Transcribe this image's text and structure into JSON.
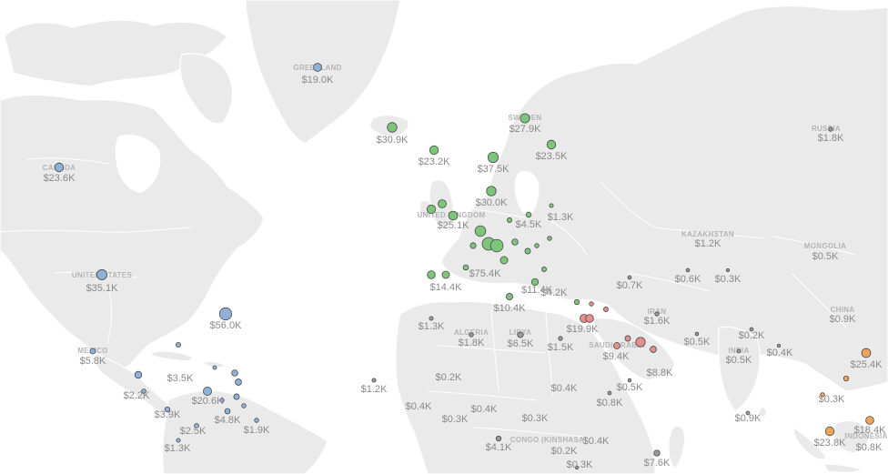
{
  "colors": {
    "americas": "#8fb1d8",
    "europe": "#7cc57a",
    "middle_east": "#e58e8e",
    "asia": "#f0a45a",
    "other": "#9a9a9a"
  },
  "country_labels": [
    "GREENLAND",
    "CANADA",
    "UNITED STATES",
    "MEXICO",
    "SWEDEN",
    "UNITED KINGDOM",
    "RUSSIA",
    "KAZAKHSTAN",
    "MONGOLIA",
    "CHINA",
    "IRAN",
    "INDIA",
    "SAUDI ARABIA",
    "ALGERIA",
    "LIBYA",
    "CONGO (KINSHASA)",
    "INDONESIA"
  ],
  "values": [
    "$19.0K",
    "$23.6K",
    "$35.1K",
    "$56.0K",
    "$5.8K",
    "$3.5K",
    "$2.2K",
    "$3.9K",
    "$20.6K",
    "$4.8K",
    "$2.5K",
    "$1.9K",
    "$1.3K",
    "$30.9K",
    "$23.2K",
    "$27.9K",
    "$37.5K",
    "$23.5K",
    "$30.0K",
    "$25.1K",
    "$4.5K",
    "$1.3K",
    "$75.4K",
    "$14.4K",
    "$11.4K",
    "$10.4K",
    "$4.2K",
    "$1.3K",
    "$1.8K",
    "$6.5K",
    "$1.5K",
    "$19.9K",
    "$9.4K",
    "$8.8K",
    "$0.7K",
    "$0.6K",
    "$0.3K",
    "$1.6K",
    "$0.5K",
    "$0.2K",
    "$0.5K",
    "$0.4K",
    "$1.2K",
    "$0.5K",
    "$0.9K",
    "$25.4K",
    "$0.3K",
    "$1.8K",
    "$1.2K",
    "$0.2K",
    "$0.4K",
    "$0.3K",
    "$0.4K",
    "$0.3K",
    "$0.4K",
    "$0.8K",
    "$0.5K",
    "$4.1K",
    "$0.2K",
    "$0.4K",
    "$0.3K",
    "$7.6K",
    "$0.9K",
    "$23.8K",
    "$18.4K",
    "$0.8K"
  ],
  "dots": [
    {
      "v": 19.0,
      "r": "americas"
    },
    {
      "v": 23.6,
      "r": "americas"
    },
    {
      "v": 35.1,
      "r": "americas"
    },
    {
      "v": 56.0,
      "r": "americas"
    },
    {
      "v": 5.8,
      "r": "americas"
    },
    {
      "v": 3.5,
      "r": "americas"
    },
    {
      "v": 12,
      "r": "americas"
    },
    {
      "v": 2.2,
      "r": "americas"
    },
    {
      "v": 3.9,
      "r": "americas"
    },
    {
      "v": 20.6,
      "r": "americas"
    },
    {
      "v": 8,
      "r": "americas"
    },
    {
      "v": 9,
      "r": "americas"
    },
    {
      "v": 6,
      "r": "americas"
    },
    {
      "v": 4.8,
      "r": "americas"
    },
    {
      "v": 2.5,
      "r": "americas"
    },
    {
      "v": 1.9,
      "r": "americas"
    },
    {
      "v": 1.3,
      "r": "americas"
    },
    {
      "v": 2,
      "r": "americas"
    },
    {
      "v": 1,
      "r": "americas"
    },
    {
      "v": 1.5,
      "r": "americas"
    },
    {
      "v": 30.9,
      "r": "europe"
    },
    {
      "v": 23.2,
      "r": "europe"
    },
    {
      "v": 27.9,
      "r": "europe"
    },
    {
      "v": 37.5,
      "r": "europe"
    },
    {
      "v": 23.5,
      "r": "europe"
    },
    {
      "v": 30.0,
      "r": "europe"
    },
    {
      "v": 25.1,
      "r": "europe"
    },
    {
      "v": 40,
      "r": "europe"
    },
    {
      "v": 75.4,
      "r": "europe"
    },
    {
      "v": 60,
      "r": "europe"
    },
    {
      "v": 14.4,
      "r": "europe"
    },
    {
      "v": 18,
      "r": "europe"
    },
    {
      "v": 11.4,
      "r": "europe"
    },
    {
      "v": 4.5,
      "r": "europe"
    },
    {
      "v": 1.3,
      "r": "europe"
    },
    {
      "v": 10.4,
      "r": "europe"
    },
    {
      "v": 4.2,
      "r": "europe"
    },
    {
      "v": 20,
      "r": "europe"
    },
    {
      "v": 22,
      "r": "europe"
    },
    {
      "v": 15,
      "r": "europe"
    },
    {
      "v": 8,
      "r": "europe"
    },
    {
      "v": 6,
      "r": "europe"
    },
    {
      "v": 3,
      "r": "europe"
    },
    {
      "v": 2,
      "r": "europe"
    },
    {
      "v": 5,
      "r": "europe"
    },
    {
      "v": 7,
      "r": "europe"
    },
    {
      "v": 3,
      "r": "europe"
    },
    {
      "v": 2,
      "r": "europe"
    },
    {
      "v": 19.9,
      "r": "middle_east"
    },
    {
      "v": 9.4,
      "r": "middle_east"
    },
    {
      "v": 8.8,
      "r": "middle_east"
    },
    {
      "v": 30,
      "r": "middle_east"
    },
    {
      "v": 18,
      "r": "middle_east"
    },
    {
      "v": 6,
      "r": "middle_east"
    },
    {
      "v": 3,
      "r": "middle_east"
    },
    {
      "v": 2,
      "r": "middle_east"
    },
    {
      "v": 25.4,
      "r": "asia"
    },
    {
      "v": 23.8,
      "r": "asia"
    },
    {
      "v": 18.4,
      "r": "asia"
    },
    {
      "v": 4,
      "r": "asia"
    },
    {
      "v": 2,
      "r": "asia"
    },
    {
      "v": 1.8,
      "r": "other"
    },
    {
      "v": 1.2,
      "r": "other"
    },
    {
      "v": 0.9,
      "r": "other"
    },
    {
      "v": 1.6,
      "r": "other"
    },
    {
      "v": 0.5,
      "r": "other"
    },
    {
      "v": 0.4,
      "r": "other"
    },
    {
      "v": 0.3,
      "r": "other"
    },
    {
      "v": 7.6,
      "r": "other"
    },
    {
      "v": 1.3,
      "r": "other"
    },
    {
      "v": 1.8,
      "r": "other"
    },
    {
      "v": 6.5,
      "r": "other"
    },
    {
      "v": 1.5,
      "r": "other"
    },
    {
      "v": 0.7,
      "r": "other"
    },
    {
      "v": 0.6,
      "r": "other"
    },
    {
      "v": 0.2,
      "r": "other"
    },
    {
      "v": 4.1,
      "r": "other"
    },
    {
      "v": 0.8,
      "r": "other"
    },
    {
      "v": 0.5,
      "r": "other"
    },
    {
      "v": 0.9,
      "r": "other"
    },
    {
      "v": 0.8,
      "r": "other"
    }
  ]
}
